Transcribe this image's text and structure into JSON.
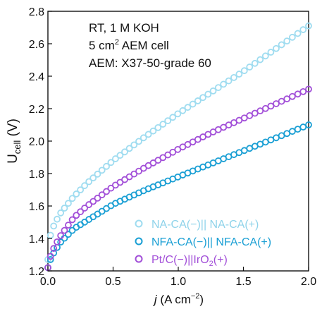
{
  "chart_data": {
    "type": "scatter",
    "xlabel_italic": "j",
    "xlabel_rest": " (A cm",
    "xlabel_sup": "−2",
    "xlabel_end": ")",
    "ylabel_main": "U",
    "ylabel_sub": "cell",
    "ylabel_rest": " (V)",
    "xlim": [
      0.0,
      2.0
    ],
    "ylim": [
      1.2,
      2.8
    ],
    "xticks": [
      "0.0",
      "0.5",
      "1.0",
      "1.5",
      "2.0"
    ],
    "yticks": [
      "1.2",
      "1.4",
      "1.6",
      "1.8",
      "2.0",
      "2.2",
      "2.4",
      "2.6",
      "2.8"
    ],
    "annotation": {
      "line1": "RT, 1 M KOH",
      "line2_pre": "5 cm",
      "line2_sup": "2",
      "line2_post": " AEM cell",
      "line3": "AEM: X37-50-grade 60"
    },
    "legend_position": "bottom-right",
    "series": [
      {
        "name": "NA-CA(−)|| NA-CA(+)",
        "color": "#9fdcf0",
        "x": [
          0.0,
          0.02,
          0.05,
          0.1,
          0.2,
          0.3,
          0.5,
          0.75,
          1.0,
          1.25,
          1.5,
          1.75,
          2.0
        ],
        "y": [
          1.27,
          1.42,
          1.49,
          1.56,
          1.66,
          1.74,
          1.88,
          2.03,
          2.17,
          2.3,
          2.43,
          2.57,
          2.71
        ]
      },
      {
        "name": "NFA-CA(−)|| NFA-CA(+)",
        "color": "#1a9fd4",
        "x": [
          0.0,
          0.02,
          0.05,
          0.1,
          0.2,
          0.3,
          0.5,
          0.75,
          1.0,
          1.25,
          1.5,
          1.75,
          2.0
        ],
        "y": [
          1.22,
          1.27,
          1.32,
          1.38,
          1.46,
          1.51,
          1.61,
          1.7,
          1.78,
          1.86,
          1.94,
          2.02,
          2.1
        ]
      },
      {
        "name_pre": "Pt/C(−)||IrO",
        "name_sub": "2",
        "name_post": "(+)",
        "color": "#a24fd8",
        "x": [
          0.0,
          0.02,
          0.05,
          0.1,
          0.2,
          0.3,
          0.5,
          0.75,
          1.0,
          1.25,
          1.5,
          1.75,
          2.0
        ],
        "y": [
          1.22,
          1.29,
          1.35,
          1.42,
          1.53,
          1.6,
          1.72,
          1.84,
          1.95,
          2.05,
          2.14,
          2.23,
          2.32
        ]
      }
    ]
  }
}
